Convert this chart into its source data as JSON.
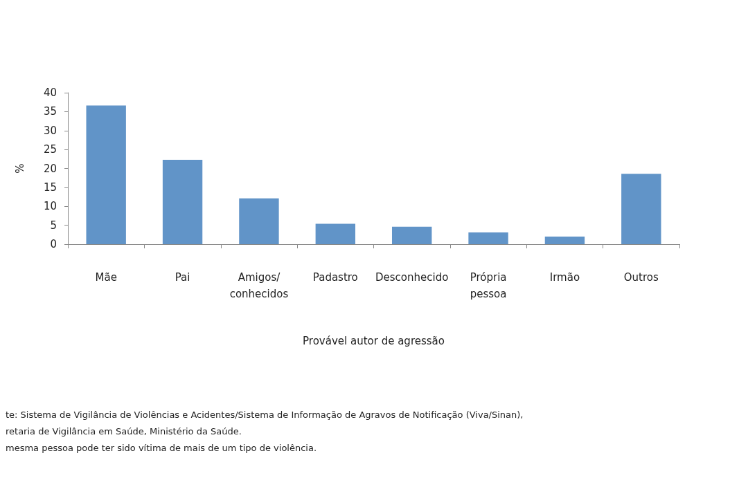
{
  "chart_data": {
    "type": "bar",
    "categories": [
      "Mãe",
      "Pai",
      "Amigos/\nconhecidos",
      "Padastro",
      "Desconhecido",
      "Própria\npessoa",
      "Irmão",
      "Outros"
    ],
    "values": [
      36.6,
      22.3,
      12.1,
      5.4,
      4.6,
      3.1,
      2.0,
      18.6
    ],
    "color": "#6194c8",
    "xlabel": "Provável autor de agressão",
    "ylabel": "%",
    "ylim": [
      0,
      40
    ],
    "yticks": [
      0,
      5,
      10,
      15,
      20,
      25,
      30,
      35,
      40
    ],
    "grid": false,
    "annotations": [
      "te: Sistema de Vigilância de Violências e Acidentes/Sistema de Informação de Agravos de Notificação (Viva/Sinan),",
      "retaria de Vigilância em Saúde, Ministério da Saúde.",
      "mesma pessoa pode ter sido vítima de mais de um tipo de violência."
    ]
  }
}
